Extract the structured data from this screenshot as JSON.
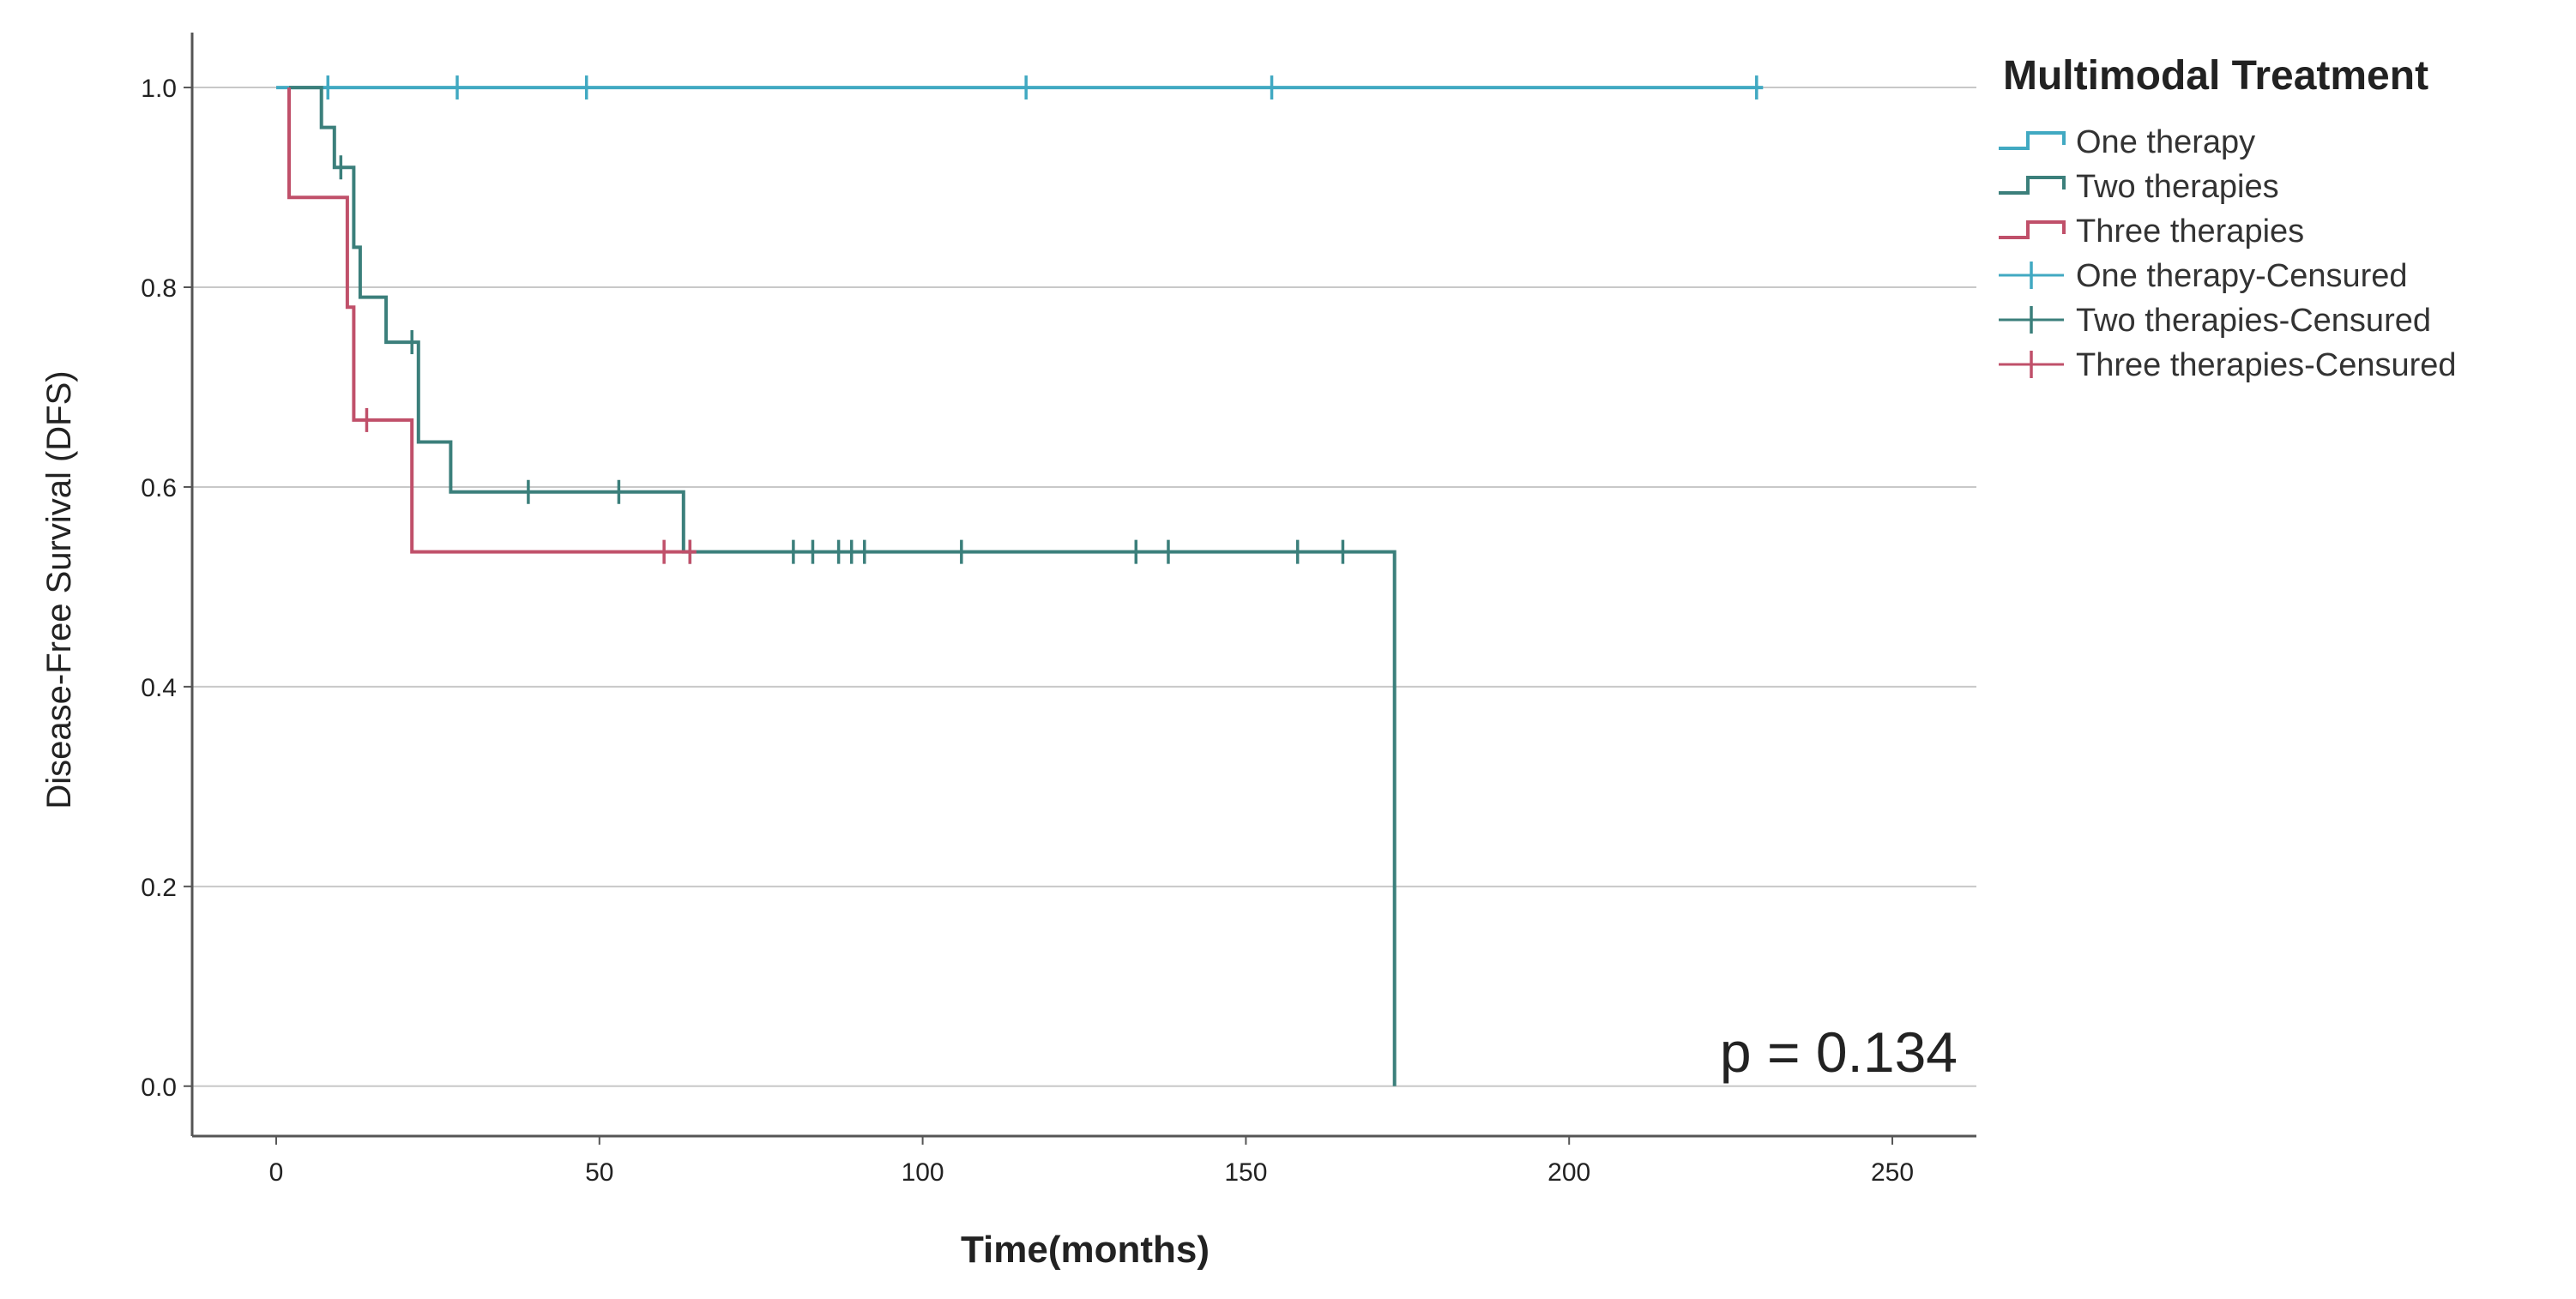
{
  "chart_data": {
    "type": "line",
    "subtype": "kaplan-meier step",
    "title": "",
    "xlabel": "Time(months)",
    "ylabel": "Disease-Free Survival (DFS)",
    "xlim": [
      -13,
      263
    ],
    "ylim": [
      -0.05,
      1.055
    ],
    "x_ticks": [
      "0",
      "50",
      "100",
      "150",
      "200",
      "250"
    ],
    "y_ticks": [
      "0.0",
      "0.2",
      "0.4",
      "0.6",
      "0.8",
      "1.0"
    ],
    "gridlines": "horizontal",
    "annotation": "p = 0.134",
    "legend": {
      "title": "Multimodal Treatment",
      "position": "top-right, outside plot",
      "entries": [
        "One therapy",
        "Two therapies",
        "Three therapies",
        "One therapy-Censured",
        "Two therapies-Censured",
        "Three therapies-Censured"
      ]
    },
    "series": [
      {
        "name": "One therapy",
        "color": "#41a9c2",
        "steps": [
          [
            0,
            1.0
          ],
          [
            230,
            1.0
          ]
        ],
        "censored_x": [
          8,
          28,
          48,
          116,
          154,
          229
        ]
      },
      {
        "name": "Two therapies",
        "color": "#3b7f7b",
        "steps": [
          [
            2,
            1.0
          ],
          [
            7,
            1.0
          ],
          [
            7,
            0.96
          ],
          [
            9,
            0.96
          ],
          [
            9,
            0.92
          ],
          [
            12,
            0.92
          ],
          [
            12,
            0.84
          ],
          [
            13,
            0.84
          ],
          [
            13,
            0.79
          ],
          [
            17,
            0.79
          ],
          [
            17,
            0.745
          ],
          [
            22,
            0.745
          ],
          [
            22,
            0.645
          ],
          [
            27,
            0.645
          ],
          [
            27,
            0.595
          ],
          [
            63,
            0.595
          ],
          [
            63,
            0.535
          ],
          [
            173,
            0.535
          ],
          [
            173,
            0.0
          ]
        ],
        "censored_x": [
          10,
          21,
          39,
          53,
          64,
          80,
          83,
          87,
          89,
          91,
          106,
          133,
          138,
          158,
          165
        ]
      },
      {
        "name": "Three therapies",
        "color": "#c0506a",
        "steps": [
          [
            2,
            1.0
          ],
          [
            2,
            0.89
          ],
          [
            11,
            0.89
          ],
          [
            11,
            0.78
          ],
          [
            12,
            0.78
          ],
          [
            12,
            0.667
          ],
          [
            21,
            0.667
          ],
          [
            21,
            0.535
          ],
          [
            65,
            0.535
          ]
        ],
        "censored_x": [
          14,
          60,
          64
        ]
      }
    ]
  }
}
